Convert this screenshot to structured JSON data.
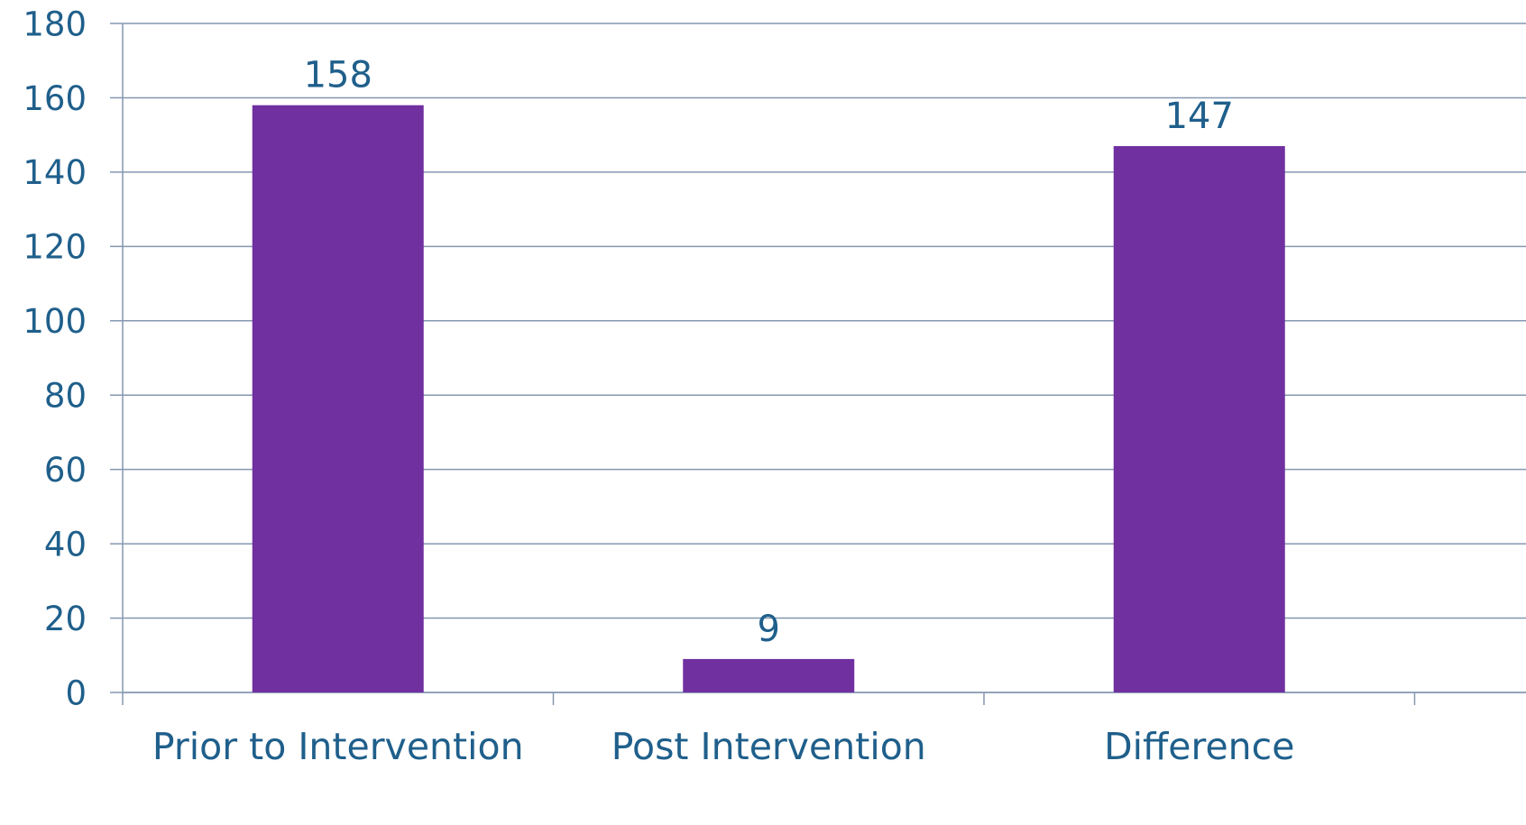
{
  "colors": {
    "bar": "#7030a0",
    "text": "#1f5f8b",
    "grid": "#8497b0",
    "axis": "#8497b0",
    "background": "#ffffff"
  },
  "chart_data": {
    "type": "bar",
    "title": "",
    "xlabel": "",
    "ylabel": "",
    "categories": [
      "Prior to Intervention",
      "Post Intervention",
      "Difference"
    ],
    "values": [
      158,
      9,
      147
    ],
    "value_labels": [
      "158",
      "9",
      "147"
    ],
    "ylim": [
      0,
      180
    ],
    "yticks": [
      0,
      20,
      40,
      60,
      80,
      100,
      120,
      140,
      160,
      180
    ],
    "ytick_labels": [
      "0",
      "20",
      "40",
      "60",
      "80",
      "100",
      "120",
      "140",
      "160",
      "180"
    ],
    "grid": true,
    "legend": "none"
  }
}
